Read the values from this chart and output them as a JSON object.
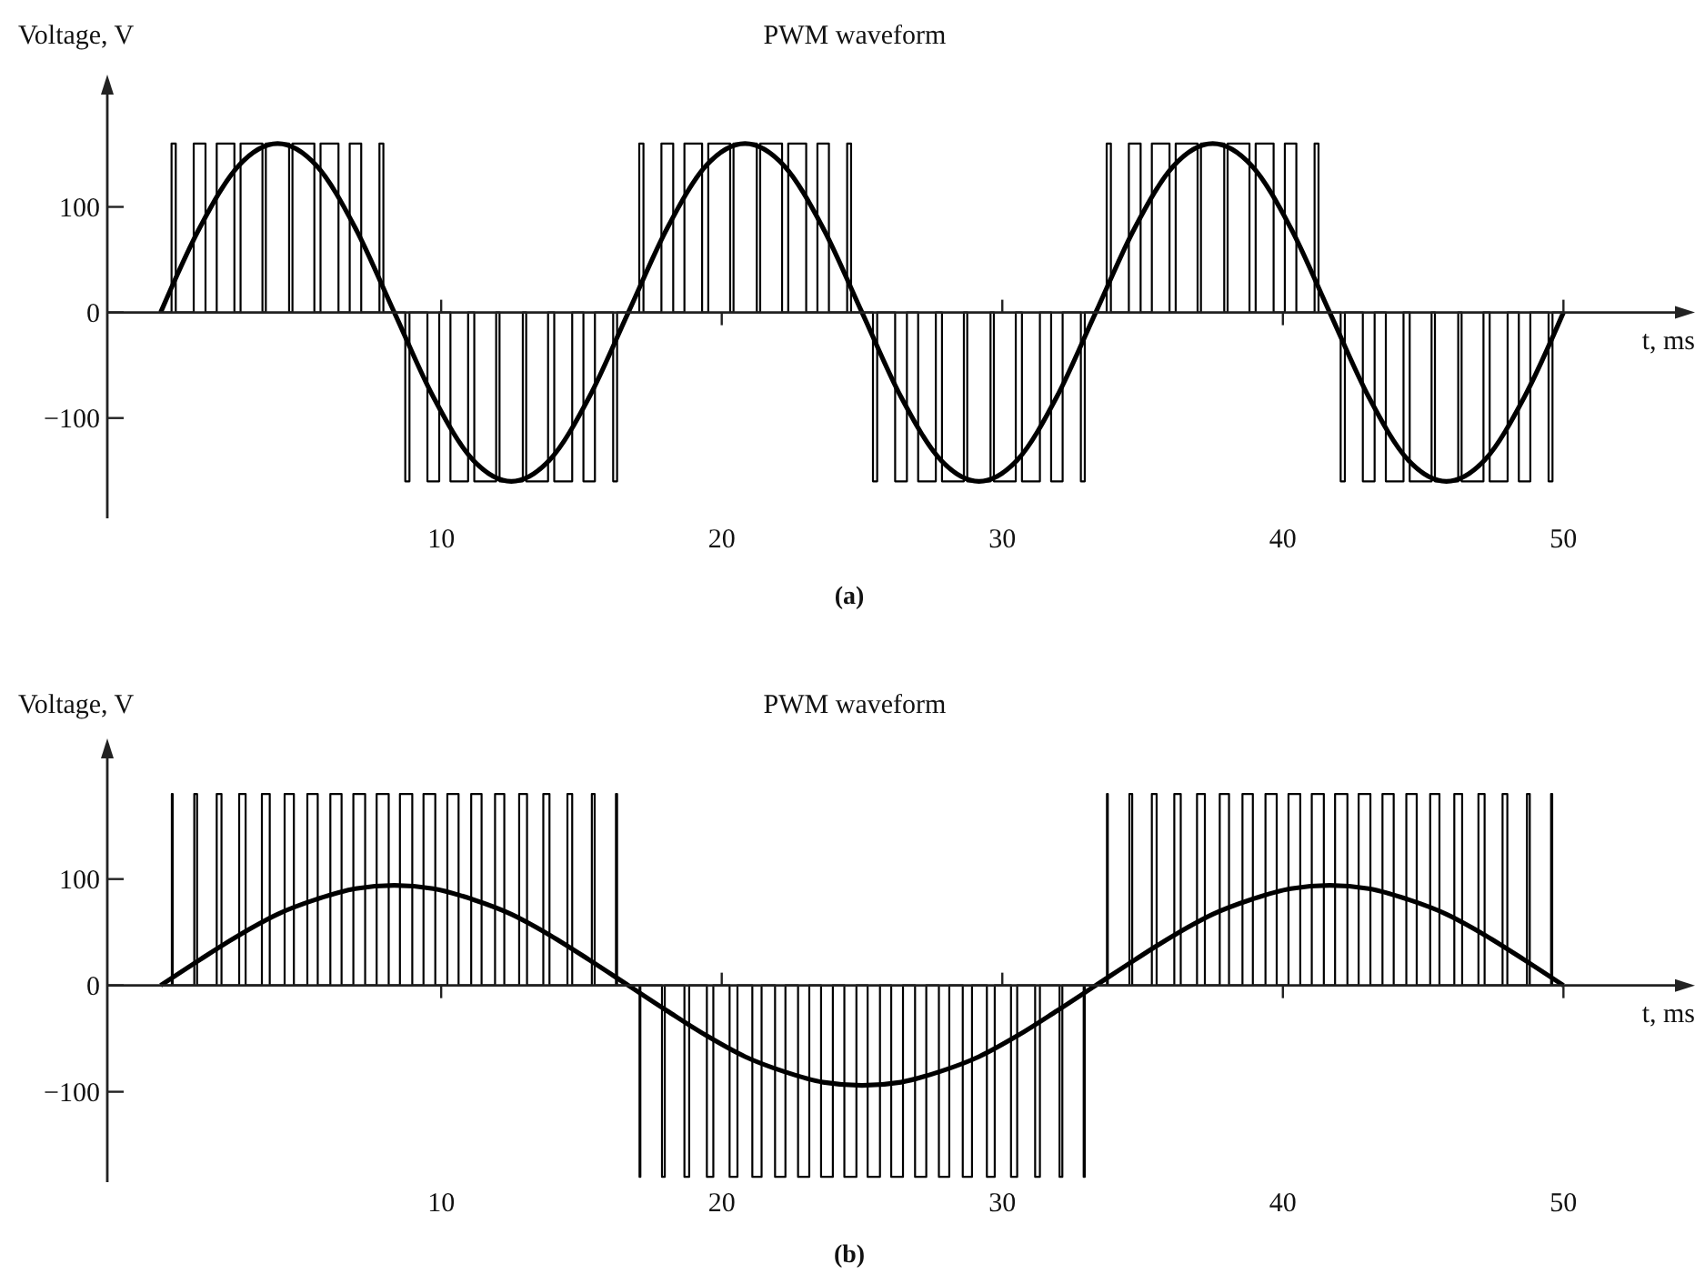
{
  "chart_data": [
    {
      "type": "line",
      "title": "PWM waveform",
      "ylabel": "Voltage, V",
      "xlabel": "t, ms",
      "annotations": [
        "(a)"
      ],
      "xlim": [
        -1.9,
        54.3
      ],
      "ylim": [
        -195,
        215
      ],
      "xticks": [
        10,
        20,
        30,
        40,
        50
      ],
      "yticks": [
        -100,
        0,
        100
      ],
      "series": [
        {
          "type": "step",
          "color": "#000000",
          "x": [
            0,
            0.39,
            0.54,
            1.18,
            1.6,
            2.0,
            2.63,
            2.85,
            3.63,
            3.75,
            4.58,
            4.7,
            5.48,
            5.7,
            6.34,
            6.74,
            7.15,
            7.8,
            7.94,
            8.72,
            8.87,
            9.51,
            9.93,
            10.33,
            10.96,
            11.18,
            11.96,
            12.08,
            12.91,
            13.03,
            13.81,
            14.03,
            14.67,
            15.07,
            15.48,
            16.13,
            16.27,
            17.06,
            17.21,
            17.85,
            18.27,
            18.67,
            19.3,
            19.52,
            20.3,
            20.42,
            21.25,
            21.37,
            22.15,
            22.37,
            23.01,
            23.41,
            23.82,
            24.47,
            24.61,
            25.39,
            25.54,
            26.18,
            26.6,
            27.0,
            27.63,
            27.85,
            28.63,
            28.75,
            29.58,
            29.7,
            30.48,
            30.7,
            31.34,
            31.74,
            32.15,
            32.8,
            32.94,
            33.72,
            33.87,
            34.51,
            34.93,
            35.33,
            35.96,
            36.18,
            36.96,
            37.08,
            37.91,
            38.03,
            38.81,
            39.03,
            39.67,
            40.07,
            40.48,
            41.13,
            41.27,
            42.06,
            42.21,
            42.85,
            43.27,
            43.67,
            44.3,
            44.52,
            45.3,
            45.42,
            46.25,
            46.37,
            47.15,
            47.37,
            48.01,
            48.41,
            48.82,
            49.47,
            49.61,
            50
          ],
          "values": [
            0,
            160,
            0,
            160,
            0,
            160,
            0,
            160,
            0,
            160,
            0,
            160,
            0,
            160,
            0,
            160,
            0,
            160,
            0,
            -160,
            0,
            -160,
            0,
            -160,
            0,
            -160,
            0,
            -160,
            0,
            -160,
            0,
            -160,
            0,
            -160,
            0,
            -160,
            0,
            160,
            0,
            160,
            0,
            160,
            0,
            160,
            0,
            160,
            0,
            160,
            0,
            160,
            0,
            160,
            0,
            160,
            0,
            -160,
            0,
            -160,
            0,
            -160,
            0,
            -160,
            0,
            -160,
            0,
            -160,
            0,
            -160,
            0,
            -160,
            0,
            -160,
            0,
            160,
            0,
            160,
            0,
            160,
            0,
            160,
            0,
            160,
            0,
            160,
            0,
            160,
            0,
            160,
            0,
            160,
            0,
            -160,
            0,
            -160,
            0,
            -160,
            0,
            -160,
            0,
            -160,
            0,
            -160,
            0,
            -160,
            0,
            -160,
            0,
            -160,
            0,
            0
          ]
        },
        {
          "type": "line",
          "color": "#000000",
          "x": [
            0,
            1.39,
            2.78,
            4.17,
            5.56,
            6.94,
            8.33,
            9.72,
            11.11,
            12.5,
            13.89,
            15.28,
            16.67,
            18.06,
            19.44,
            20.83,
            22.22,
            23.61,
            25,
            26.39,
            27.78,
            29.17,
            30.56,
            31.94,
            33.33,
            34.72,
            36.11,
            37.5,
            38.89,
            40.28,
            41.67,
            43.06,
            44.44,
            45.83,
            47.22,
            48.61,
            50
          ],
          "values": [
            0,
            80,
            139,
            160,
            139,
            80,
            0,
            -80,
            -139,
            -160,
            -139,
            -80,
            0,
            80,
            139,
            160,
            139,
            80,
            0,
            -80,
            -139,
            -160,
            -139,
            -80,
            0,
            80,
            139,
            160,
            139,
            80,
            0,
            -80,
            -139,
            -160,
            -139,
            -80,
            0
          ]
        }
      ]
    },
    {
      "type": "line",
      "title": "PWM waveform",
      "ylabel": "Voltage, V",
      "xlabel": "t, ms",
      "annotations": [
        "(b)"
      ],
      "xlim": [
        -1.9,
        54.3
      ],
      "ylim": [
        -185,
        222
      ],
      "xticks": [
        10,
        20,
        30,
        40,
        50
      ],
      "yticks": [
        -100,
        0,
        100
      ],
      "series": [
        {
          "type": "step",
          "color": "#000000",
          "x": [
            0,
            0.4,
            0.43,
            1.2,
            1.3,
            2.0,
            2.17,
            2.8,
            3.03,
            3.61,
            3.89,
            4.42,
            4.75,
            5.23,
            5.6,
            6.05,
            6.45,
            6.87,
            7.29,
            7.7,
            8.13,
            8.53,
            8.97,
            9.37,
            9.79,
            10.22,
            10.62,
            11.07,
            11.44,
            11.92,
            12.25,
            12.78,
            13.06,
            13.64,
            13.86,
            14.5,
            14.67,
            15.37,
            15.47,
            16.23,
            16.27,
            17.07,
            17.1,
            17.87,
            17.97,
            18.67,
            18.84,
            19.47,
            19.7,
            20.28,
            20.56,
            21.09,
            21.42,
            21.9,
            22.27,
            22.72,
            23.12,
            23.54,
            23.96,
            24.37,
            24.8,
            25.2,
            25.64,
            26.04,
            26.46,
            26.89,
            27.29,
            27.74,
            28.11,
            28.59,
            28.92,
            29.45,
            29.73,
            30.31,
            30.53,
            31.17,
            31.34,
            32.04,
            32.14,
            32.9,
            32.94,
            33.73,
            33.76,
            34.53,
            34.63,
            35.33,
            35.5,
            36.13,
            36.36,
            36.94,
            37.22,
            37.75,
            38.08,
            38.56,
            38.93,
            39.38,
            39.78,
            40.2,
            40.62,
            41.03,
            41.46,
            41.86,
            42.3,
            42.7,
            43.12,
            43.55,
            43.95,
            44.4,
            44.77,
            45.25,
            45.58,
            46.11,
            46.39,
            46.97,
            47.19,
            47.83,
            48.0,
            48.7,
            48.8,
            49.56,
            49.6,
            50
          ],
          "values": [
            0,
            180,
            0,
            180,
            0,
            180,
            0,
            180,
            0,
            180,
            0,
            180,
            0,
            180,
            0,
            180,
            0,
            180,
            0,
            180,
            0,
            180,
            0,
            180,
            0,
            180,
            0,
            180,
            0,
            180,
            0,
            180,
            0,
            180,
            0,
            180,
            0,
            180,
            0,
            180,
            0,
            -180,
            0,
            -180,
            0,
            -180,
            0,
            -180,
            0,
            -180,
            0,
            -180,
            0,
            -180,
            0,
            -180,
            0,
            -180,
            0,
            -180,
            0,
            -180,
            0,
            -180,
            0,
            -180,
            0,
            -180,
            0,
            -180,
            0,
            -180,
            0,
            -180,
            0,
            -180,
            0,
            -180,
            0,
            -180,
            0,
            180,
            0,
            180,
            0,
            180,
            0,
            180,
            0,
            180,
            0,
            180,
            0,
            180,
            0,
            180,
            0,
            180,
            0,
            180,
            0,
            180,
            0,
            180,
            0,
            180,
            0,
            180,
            0,
            180,
            0,
            180,
            0,
            180,
            0,
            180,
            0,
            180,
            0,
            180,
            0,
            0
          ]
        },
        {
          "type": "line",
          "color": "#000000",
          "x": [
            0,
            1.39,
            2.78,
            4.17,
            5.56,
            6.94,
            8.33,
            9.72,
            11.11,
            12.5,
            13.89,
            15.28,
            16.67,
            18.06,
            19.44,
            20.83,
            22.22,
            23.61,
            25,
            26.39,
            27.78,
            29.17,
            30.56,
            31.94,
            33.33,
            34.72,
            36.11,
            37.5,
            38.89,
            40.28,
            41.67,
            43.06,
            44.44,
            45.83,
            47.22,
            48.61,
            50
          ],
          "values": [
            0,
            24,
            47,
            67,
            81,
            91,
            94,
            91,
            81,
            67,
            47,
            24,
            0,
            -24,
            -47,
            -67,
            -81,
            -91,
            -94,
            -91,
            -81,
            -67,
            -47,
            -24,
            0,
            24,
            47,
            67,
            81,
            91,
            94,
            91,
            81,
            67,
            47,
            24,
            0
          ]
        }
      ]
    }
  ]
}
